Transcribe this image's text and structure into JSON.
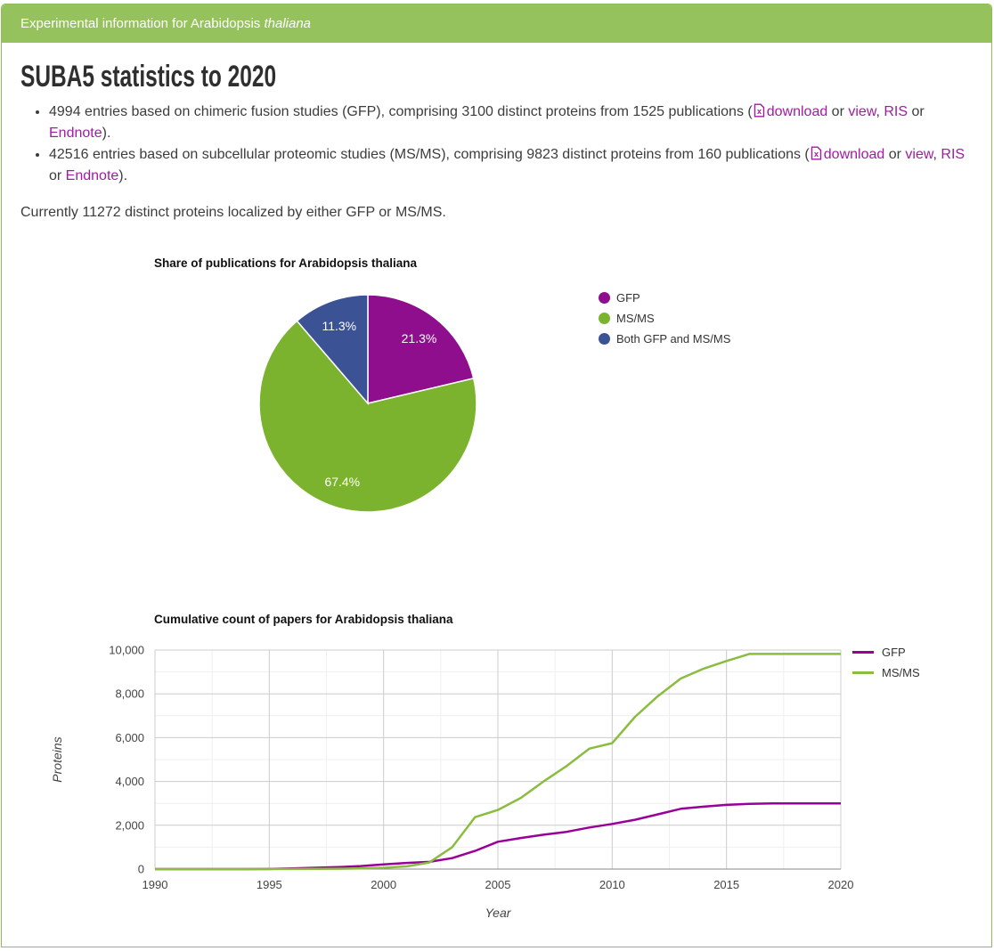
{
  "header": {
    "title_prefix": "Experimental information for Arabidopsis ",
    "title_species": "thaliana"
  },
  "page": {
    "title": "SUBA5 statistics to 2020",
    "sep_or": " or ",
    "sep_comma": ", ",
    "bullets": [
      {
        "text": "4994 entries based on chimeric fusion studies (GFP), comprising 3100 distinct proteins from 1525 publications (",
        "link_download": "download",
        "link_view": "view",
        "link_ris": "RIS",
        "link_endnote": "Endnote",
        "closing": ")."
      },
      {
        "text": "42516 entries based on subcellular proteomic studies (MS/MS), comprising 9823 distinct proteins from 160 publications (",
        "link_download": "download",
        "link_view": "view",
        "link_ris": "RIS",
        "link_endnote": "Endnote",
        "closing": ")."
      }
    ],
    "summary": "Currently 11272 distinct proteins localized by either GFP or MS/MS."
  },
  "colors": {
    "header_green": "#96C25D",
    "border_green": "#8CBD58",
    "link_purple": "#A01BA5",
    "body_text": "#3C3C3C"
  },
  "chart_data": [
    {
      "type": "pie",
      "title": "Share of publications for Arabidopsis thaliana",
      "legend_position": "right",
      "label_format": "percent",
      "slices": [
        {
          "label": "GFP",
          "value": 21.3,
          "display": "21.3%",
          "color": "#8E0E8E"
        },
        {
          "label": "MS/MS",
          "value": 67.4,
          "display": "67.4%",
          "color": "#7CB32E"
        },
        {
          "label": "Both GFP and MS/MS",
          "value": 11.3,
          "display": "11.3%",
          "color": "#3B5294"
        }
      ]
    },
    {
      "type": "line",
      "title": "Cumulative count of papers for Arabidopsis thaliana",
      "xlabel": "Year",
      "ylabel": "Proteins",
      "xlim": [
        1990,
        2020
      ],
      "ylim": [
        0,
        10000
      ],
      "grid": true,
      "legend_position": "top-right",
      "xticks": [
        1990,
        1995,
        2000,
        2005,
        2010,
        2015,
        2020
      ],
      "yticks": [
        0,
        2000,
        4000,
        6000,
        8000,
        10000
      ],
      "ytick_labels": [
        "0",
        "2,000",
        "4,000",
        "6,000",
        "8,000",
        "10,000"
      ],
      "x": [
        1990,
        1991,
        1992,
        1993,
        1994,
        1995,
        1996,
        1997,
        1998,
        1999,
        2000,
        2001,
        2002,
        2003,
        2004,
        2005,
        2006,
        2007,
        2008,
        2009,
        2010,
        2011,
        2012,
        2013,
        2014,
        2015,
        2016,
        2017,
        2018,
        2019,
        2020
      ],
      "series": [
        {
          "name": "GFP",
          "color": "#990099",
          "values": [
            0,
            0,
            0,
            0,
            0,
            5,
            30,
            60,
            90,
            140,
            210,
            280,
            330,
            500,
            830,
            1250,
            1420,
            1570,
            1700,
            1900,
            2060,
            2250,
            2500,
            2750,
            2850,
            2930,
            2980,
            3000,
            3000,
            3000,
            3000
          ]
        },
        {
          "name": "MS/MS",
          "color": "#8ABD3F",
          "values": [
            0,
            0,
            0,
            0,
            0,
            0,
            5,
            10,
            15,
            30,
            60,
            120,
            300,
            1000,
            2370,
            2700,
            3250,
            4000,
            4700,
            5500,
            5750,
            6950,
            7900,
            8700,
            9150,
            9500,
            9823,
            9823,
            9823,
            9823,
            9823
          ]
        }
      ]
    }
  ]
}
